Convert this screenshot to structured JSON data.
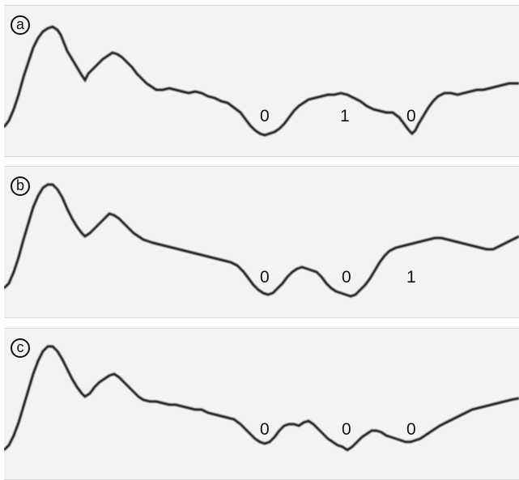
{
  "panels": [
    {
      "letter": "a",
      "bits": [
        "0",
        "1",
        "0"
      ]
    },
    {
      "letter": "b",
      "bits": [
        "0",
        "0",
        "1"
      ]
    },
    {
      "letter": "c",
      "bits": [
        "0",
        "0",
        "0"
      ]
    }
  ],
  "colors": {
    "background": "#f3f3f3",
    "trace": "#1a1a1a"
  }
}
